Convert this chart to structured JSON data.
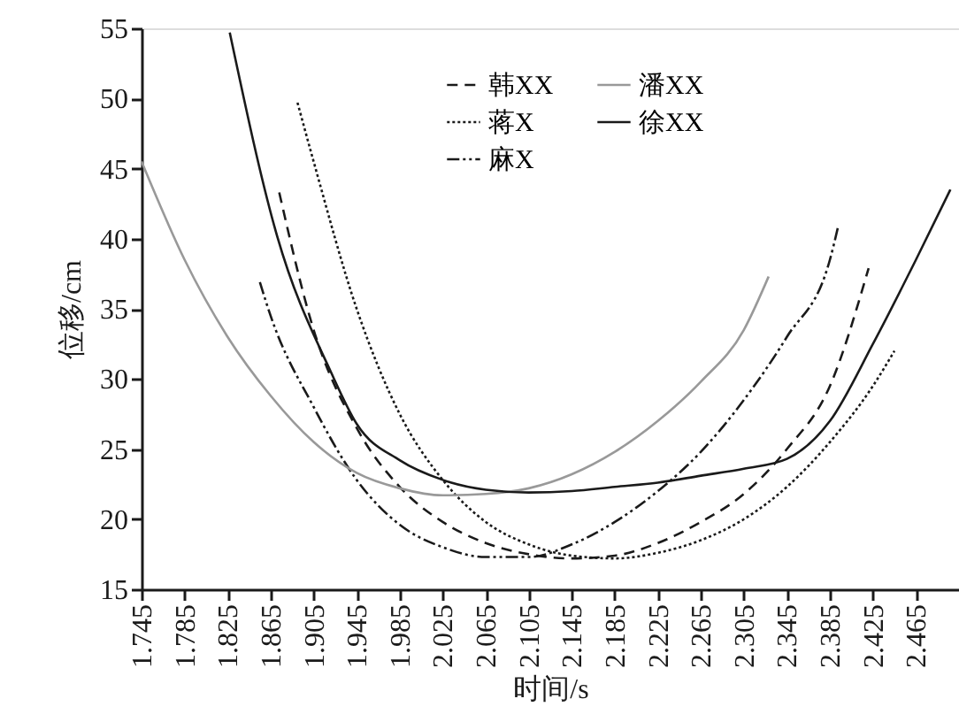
{
  "chart_data": {
    "type": "line",
    "xlabel": "时间/s",
    "ylabel": "位移/cm",
    "xlim": [
      1.745,
      2.505
    ],
    "ylim": [
      15,
      55
    ],
    "xticks": [
      1.745,
      1.785,
      1.825,
      1.865,
      1.905,
      1.945,
      1.985,
      2.025,
      2.065,
      2.105,
      2.145,
      2.185,
      2.225,
      2.265,
      2.305,
      2.345,
      2.385,
      2.425,
      2.465
    ],
    "yticks": [
      15,
      20,
      25,
      30,
      35,
      40,
      45,
      50,
      55
    ],
    "grid": false,
    "legend": "top",
    "marker": "none",
    "series": [
      {
        "name": "韩XX",
        "color": "#1a1a1a",
        "line_style": "dashed",
        "x": [
          1.873,
          1.905,
          1.945,
          1.985,
          2.025,
          2.065,
          2.105,
          2.145,
          2.185,
          2.225,
          2.265,
          2.305,
          2.345,
          2.385,
          2.421
        ],
        "values": [
          43.3,
          33.5,
          26.5,
          22.3,
          19.8,
          18.3,
          17.5,
          17.2,
          17.4,
          18.3,
          19.8,
          21.8,
          25,
          29.5,
          37.9
        ]
      },
      {
        "name": "蒋X",
        "color": "#1a1a1a",
        "line_style": "dotted",
        "x": [
          1.89,
          1.905,
          1.945,
          1.985,
          2.025,
          2.065,
          2.105,
          2.145,
          2.185,
          2.225,
          2.265,
          2.305,
          2.345,
          2.385,
          2.425,
          2.445
        ],
        "values": [
          49.7,
          45.5,
          35,
          27.5,
          22.8,
          19.8,
          18.2,
          17.4,
          17.2,
          17.6,
          18.5,
          20,
          22.3,
          25.5,
          29.5,
          32
        ]
      },
      {
        "name": "麻X",
        "color": "#1a1a1a",
        "line_style": "dashdot",
        "x": [
          1.855,
          1.865,
          1.905,
          1.945,
          1.985,
          2.025,
          2.065,
          2.105,
          2.145,
          2.185,
          2.225,
          2.265,
          2.305,
          2.345,
          2.385,
          2.393
        ],
        "values": [
          36.9,
          34.5,
          28,
          22.8,
          19.6,
          18,
          17.3,
          17.3,
          18.2,
          19.8,
          22,
          24.8,
          28.5,
          33,
          38.5,
          41
        ]
      },
      {
        "name": "潘XX",
        "color": "#999999",
        "line_style": "solid",
        "x": [
          1.745,
          1.785,
          1.825,
          1.865,
          1.905,
          1.945,
          1.985,
          2.025,
          2.065,
          2.105,
          2.145,
          2.185,
          2.225,
          2.265,
          2.305,
          2.328
        ],
        "values": [
          45.5,
          38.5,
          33,
          28.8,
          25.5,
          23.3,
          22.2,
          21.7,
          21.8,
          22.2,
          23.2,
          24.8,
          27,
          29.8,
          33.5,
          37.3
        ]
      },
      {
        "name": "徐XX",
        "color": "#1a1a1a",
        "line_style": "solid",
        "x": [
          1.827,
          1.871,
          1.921,
          1.945,
          1.985,
          2.025,
          2.065,
          2.105,
          2.145,
          2.185,
          2.225,
          2.265,
          2.305,
          2.345,
          2.385,
          2.425,
          2.465,
          2.497
        ],
        "values": [
          54.7,
          40.2,
          30.5,
          26.8,
          24.2,
          22.8,
          22.1,
          21.9,
          22,
          22.3,
          22.6,
          23.1,
          23.6,
          24.3,
          27,
          32.5,
          38.5,
          43.5
        ]
      }
    ]
  }
}
